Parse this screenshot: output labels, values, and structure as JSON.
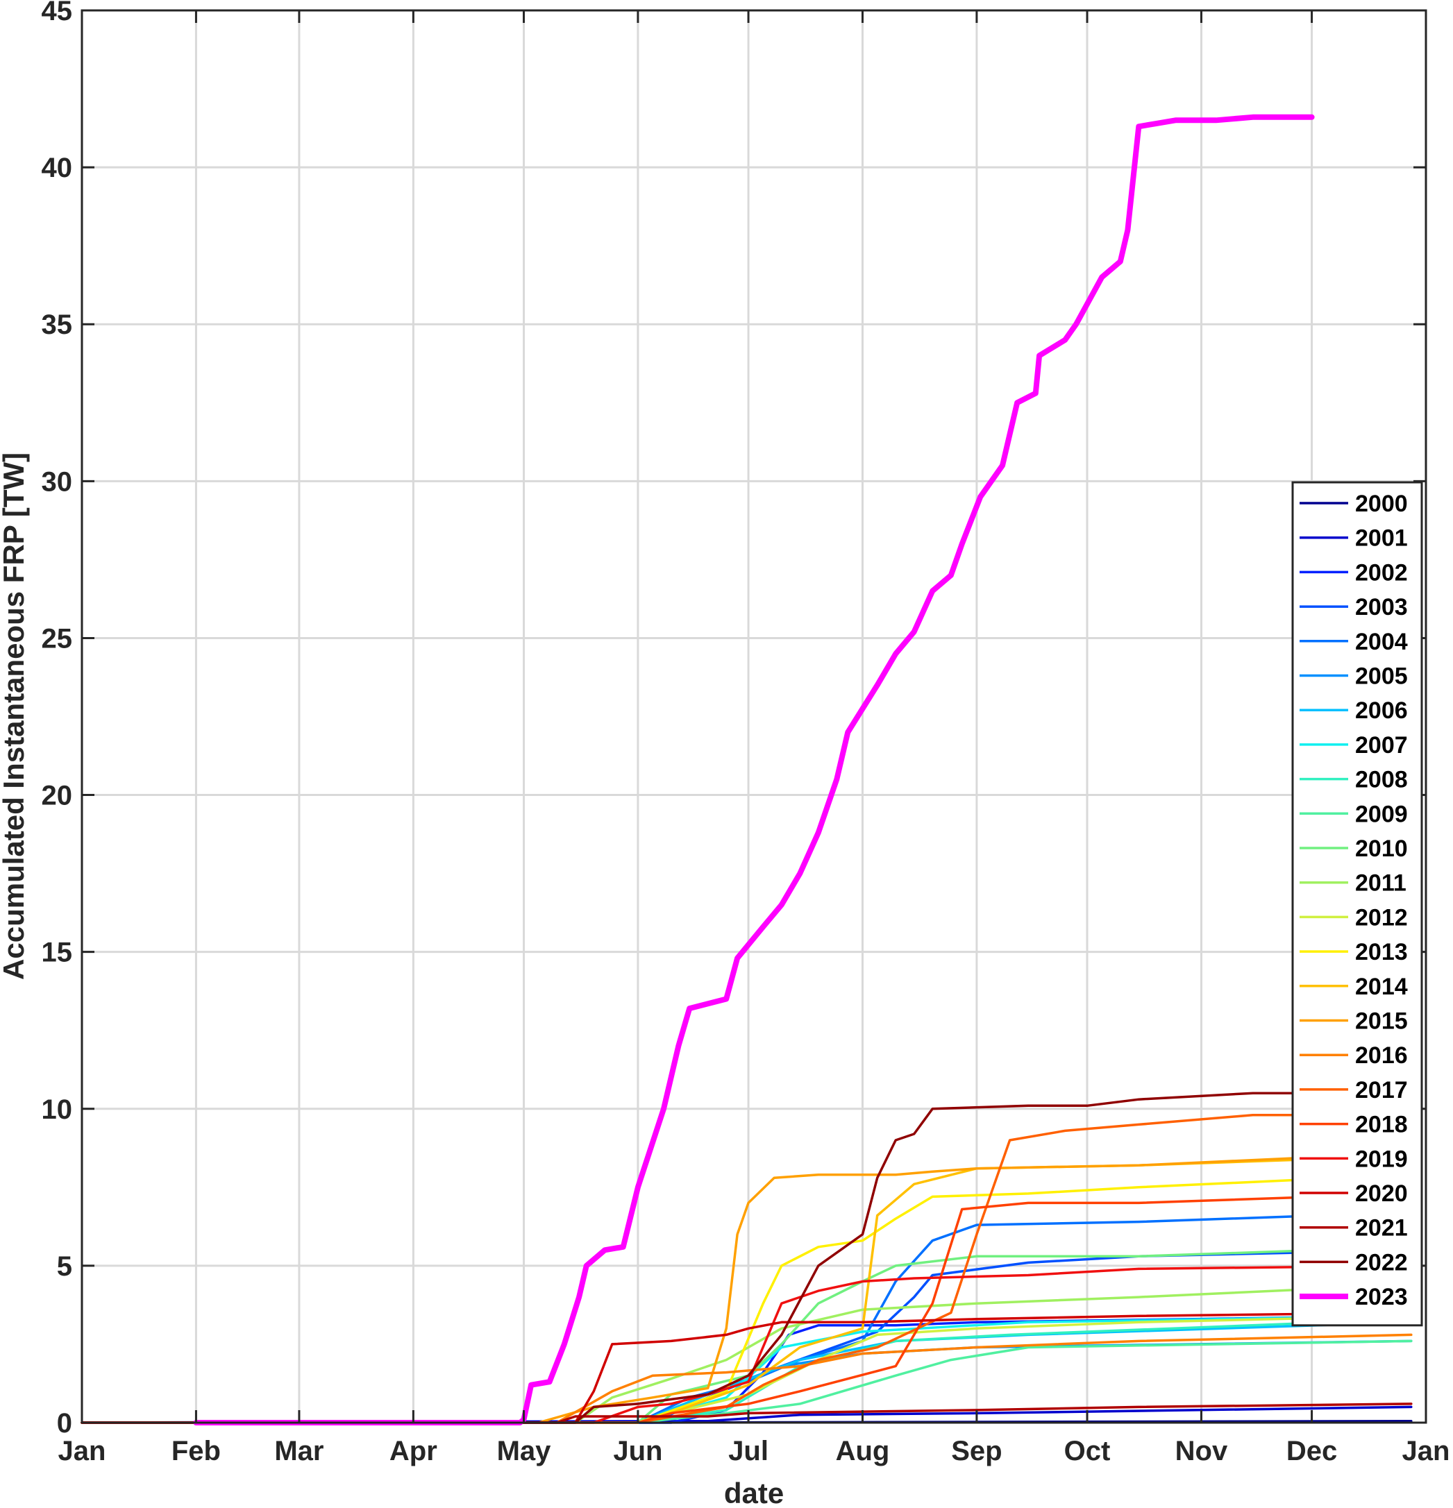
{
  "chart_data": {
    "type": "line",
    "title": "",
    "xlabel": "date",
    "ylabel": "Accumulated Instantaneous FRP [TW]",
    "ylim": [
      0,
      45
    ],
    "xlim": [
      "Jan 1",
      "Jan 1 (next year)"
    ],
    "yticks": [
      "0",
      "5",
      "10",
      "15",
      "20",
      "25",
      "30",
      "35",
      "40",
      "45"
    ],
    "xticks": [
      "Jan",
      "Feb",
      "Mar",
      "Apr",
      "May",
      "Jun",
      "Jul",
      "Aug",
      "Sep",
      "Oct",
      "Nov",
      "Dec",
      "Jan"
    ],
    "grid": true,
    "legend_position": "right, inside",
    "series": [
      {
        "name": "2000",
        "color": "#00008F",
        "points": [
          [
            "Jan 1",
            0
          ],
          [
            "Jun 1",
            0
          ],
          [
            "Dec 28",
            0.05
          ]
        ]
      },
      {
        "name": "2001",
        "color": "#0000CC",
        "points": [
          [
            "Jan 1",
            0
          ],
          [
            "Jun 20",
            0.05
          ],
          [
            "Jul 15",
            0.25
          ],
          [
            "Sep 1",
            0.3
          ],
          [
            "Dec 28",
            0.5
          ]
        ]
      },
      {
        "name": "2002",
        "color": "#0020FF",
        "points": [
          [
            "Jan 1",
            0
          ],
          [
            "Jun 10",
            0
          ],
          [
            "Jun 25",
            0.4
          ],
          [
            "Jul 5",
            1.6
          ],
          [
            "Jul 12",
            2.8
          ],
          [
            "Jul 20",
            3.1
          ],
          [
            "Aug 10",
            3.1
          ],
          [
            "Sep 1",
            3.2
          ],
          [
            "Dec 28",
            3.4
          ]
        ]
      },
      {
        "name": "2003",
        "color": "#0050FF",
        "points": [
          [
            "Jan 1",
            0
          ],
          [
            "Jun 5",
            0
          ],
          [
            "Jun 20",
            0.8
          ],
          [
            "Jul 10",
            1.8
          ],
          [
            "Aug 5",
            2.9
          ],
          [
            "Aug 15",
            4.0
          ],
          [
            "Aug 20",
            4.7
          ],
          [
            "Sep 15",
            5.1
          ],
          [
            "Oct 15",
            5.3
          ],
          [
            "Dec 28",
            5.5
          ]
        ]
      },
      {
        "name": "2004",
        "color": "#0070FF",
        "points": [
          [
            "Jan 1",
            0
          ],
          [
            "Jun 1",
            0
          ],
          [
            "Jun 15",
            0.8
          ],
          [
            "Jul 1",
            1.3
          ],
          [
            "Jul 15",
            2.0
          ],
          [
            "Aug 1",
            2.6
          ],
          [
            "Aug 10",
            4.5
          ],
          [
            "Aug 20",
            5.8
          ],
          [
            "Sep 1",
            6.3
          ],
          [
            "Oct 15",
            6.4
          ],
          [
            "Dec 28",
            6.7
          ]
        ]
      },
      {
        "name": "2005",
        "color": "#0090FF",
        "points": [
          [
            "Jan 1",
            0
          ],
          [
            "Jun 1",
            0
          ],
          [
            "Jun 20",
            0.9
          ],
          [
            "Jul 10",
            1.8
          ],
          [
            "Aug 1",
            2.2
          ],
          [
            "Sep 1",
            2.4
          ],
          [
            "Dec 28",
            2.6
          ]
        ]
      },
      {
        "name": "2006",
        "color": "#00C0FF",
        "points": [
          [
            "Jan 1",
            0
          ],
          [
            "Jun 1",
            0
          ],
          [
            "Jun 20",
            0.9
          ],
          [
            "Jul 15",
            2.0
          ],
          [
            "Aug 10",
            2.6
          ],
          [
            "Sep 15",
            2.8
          ],
          [
            "Dec 28",
            3.2
          ]
        ]
      },
      {
        "name": "2007",
        "color": "#10F0F0",
        "points": [
          [
            "Jan 1",
            0
          ],
          [
            "Jun 1",
            0
          ],
          [
            "Jun 25",
            0.8
          ],
          [
            "Jul 10",
            2.4
          ],
          [
            "Aug 1",
            2.9
          ],
          [
            "Sep 15",
            3.2
          ],
          [
            "Dec 28",
            3.4
          ]
        ]
      },
      {
        "name": "2008",
        "color": "#30F0C0",
        "points": [
          [
            "Jan 1",
            0
          ],
          [
            "Jun 1",
            0
          ],
          [
            "Jun 25",
            0.4
          ],
          [
            "Jul 15",
            1.8
          ],
          [
            "Aug 10",
            2.6
          ],
          [
            "Sep 10",
            2.8
          ],
          [
            "Dec 28",
            3.3
          ]
        ]
      },
      {
        "name": "2009",
        "color": "#50F0A0",
        "points": [
          [
            "Jan 1",
            0
          ],
          [
            "Jun 1",
            0
          ],
          [
            "Jun 25",
            0.3
          ],
          [
            "Jul 15",
            0.6
          ],
          [
            "Aug 10",
            1.5
          ],
          [
            "Aug 25",
            2.0
          ],
          [
            "Sep 15",
            2.4
          ],
          [
            "Dec 28",
            2.6
          ]
        ]
      },
      {
        "name": "2010",
        "color": "#70F080",
        "points": [
          [
            "Jan 1",
            0
          ],
          [
            "Jun 1",
            0
          ],
          [
            "Jun 10",
            0.9
          ],
          [
            "Jul 1",
            1.5
          ],
          [
            "Jul 10",
            2.5
          ],
          [
            "Jul 20",
            3.8
          ],
          [
            "Aug 1",
            4.5
          ],
          [
            "Aug 10",
            5.0
          ],
          [
            "Sep 1",
            5.3
          ],
          [
            "Oct 15",
            5.3
          ],
          [
            "Dec 28",
            5.6
          ]
        ]
      },
      {
        "name": "2011",
        "color": "#A0F060",
        "points": [
          [
            "Jan 1",
            0
          ],
          [
            "May 15",
            0
          ],
          [
            "May 25",
            0.8
          ],
          [
            "Jun 10",
            1.4
          ],
          [
            "Jun 25",
            2.0
          ],
          [
            "Jul 10",
            3.0
          ],
          [
            "Aug 1",
            3.6
          ],
          [
            "Sep 1",
            3.8
          ],
          [
            "Oct 15",
            4.0
          ],
          [
            "Dec 28",
            4.4
          ]
        ]
      },
      {
        "name": "2012",
        "color": "#D0F040",
        "points": [
          [
            "Jan 1",
            0
          ],
          [
            "Jun 1",
            0
          ],
          [
            "Jun 10",
            0.3
          ],
          [
            "Jul 1",
            0.9
          ],
          [
            "Jul 20",
            2.0
          ],
          [
            "Aug 5",
            2.8
          ],
          [
            "Sep 1",
            3.0
          ],
          [
            "Oct 15",
            3.2
          ],
          [
            "Dec 28",
            3.4
          ]
        ]
      },
      {
        "name": "2013",
        "color": "#FFF000",
        "points": [
          [
            "Jan 1",
            0
          ],
          [
            "Jun 1",
            0
          ],
          [
            "Jun 25",
            1.0
          ],
          [
            "Jul 5",
            3.8
          ],
          [
            "Jul 10",
            5.0
          ],
          [
            "Jul 20",
            5.6
          ],
          [
            "Aug 1",
            5.8
          ],
          [
            "Aug 10",
            6.5
          ],
          [
            "Aug 20",
            7.2
          ],
          [
            "Sep 15",
            7.3
          ],
          [
            "Oct 15",
            7.5
          ],
          [
            "Dec 28",
            7.9
          ]
        ]
      },
      {
        "name": "2014",
        "color": "#FFC000",
        "points": [
          [
            "Jan 1",
            0
          ],
          [
            "Jun 1",
            0
          ],
          [
            "Jun 10",
            0.3
          ],
          [
            "Jul 1",
            1.2
          ],
          [
            "Jul 15",
            2.4
          ],
          [
            "Aug 1",
            3.0
          ],
          [
            "Aug 5",
            6.6
          ],
          [
            "Aug 15",
            7.6
          ],
          [
            "Sep 1",
            8.1
          ],
          [
            "Oct 15",
            8.2
          ],
          [
            "Dec 28",
            8.5
          ]
        ]
      },
      {
        "name": "2015",
        "color": "#FFA000",
        "points": [
          [
            "Jan 1",
            0
          ],
          [
            "May 5",
            0
          ],
          [
            "May 20",
            0.5
          ],
          [
            "Jun 5",
            0.8
          ],
          [
            "Jun 20",
            1.1
          ],
          [
            "Jun 25",
            3.0
          ],
          [
            "Jun 28",
            6.0
          ],
          [
            "Jul 1",
            7.0
          ],
          [
            "Jul 8",
            7.8
          ],
          [
            "Jul 20",
            7.9
          ],
          [
            "Aug 10",
            7.9
          ],
          [
            "Aug 20",
            8.0
          ],
          [
            "Sep 1",
            8.1
          ],
          [
            "Oct 15",
            8.2
          ],
          [
            "Dec 28",
            8.6
          ]
        ]
      },
      {
        "name": "2016",
        "color": "#FF8000",
        "points": [
          [
            "Jan 1",
            0
          ],
          [
            "May 10",
            0
          ],
          [
            "May 25",
            1.0
          ],
          [
            "Jun 5",
            1.5
          ],
          [
            "Jun 25",
            1.6
          ],
          [
            "Jul 15",
            1.8
          ],
          [
            "Aug 1",
            2.2
          ],
          [
            "Sep 1",
            2.4
          ],
          [
            "Oct 15",
            2.6
          ],
          [
            "Dec 28",
            2.8
          ]
        ]
      },
      {
        "name": "2017",
        "color": "#FF6000",
        "points": [
          [
            "Jan 1",
            0
          ],
          [
            "Jun 1",
            0
          ],
          [
            "Jun 25",
            0.5
          ],
          [
            "Jul 5",
            1.2
          ],
          [
            "Jul 20",
            2.0
          ],
          [
            "Aug 5",
            2.4
          ],
          [
            "Aug 25",
            3.5
          ],
          [
            "Sep 1",
            6.0
          ],
          [
            "Sep 10",
            9.0
          ],
          [
            "Sep 25",
            9.3
          ],
          [
            "Oct 15",
            9.5
          ],
          [
            "Nov 15",
            9.8
          ],
          [
            "Dec 28",
            9.8
          ]
        ]
      },
      {
        "name": "2018",
        "color": "#FF4000",
        "points": [
          [
            "Jan 1",
            0
          ],
          [
            "Jun 1",
            0
          ],
          [
            "Jun 10",
            0.3
          ],
          [
            "Jul 1",
            0.6
          ],
          [
            "Jul 15",
            1.0
          ],
          [
            "Aug 10",
            1.8
          ],
          [
            "Aug 20",
            3.8
          ],
          [
            "Aug 28",
            6.8
          ],
          [
            "Sep 15",
            7.0
          ],
          [
            "Oct 15",
            7.0
          ],
          [
            "Dec 28",
            7.3
          ]
        ]
      },
      {
        "name": "2019",
        "color": "#F01010",
        "points": [
          [
            "Jan 1",
            0
          ],
          [
            "May 20",
            0
          ],
          [
            "Jun 1",
            0.5
          ],
          [
            "Jun 10",
            0.6
          ],
          [
            "Jun 20",
            0.9
          ],
          [
            "Jul 1",
            1.3
          ],
          [
            "Jul 10",
            3.8
          ],
          [
            "Jul 20",
            4.2
          ],
          [
            "Aug 1",
            4.5
          ],
          [
            "Aug 15",
            4.6
          ],
          [
            "Sep 15",
            4.7
          ],
          [
            "Oct 15",
            4.9
          ],
          [
            "Dec 28",
            5.0
          ]
        ]
      },
      {
        "name": "2020",
        "color": "#D00000",
        "points": [
          [
            "Jan 1",
            0
          ],
          [
            "May 15",
            0
          ],
          [
            "May 20",
            1.0
          ],
          [
            "May 25",
            2.5
          ],
          [
            "Jun 10",
            2.6
          ],
          [
            "Jun 25",
            2.8
          ],
          [
            "Jul 1",
            3.0
          ],
          [
            "Jul 10",
            3.2
          ],
          [
            "Aug 1",
            3.2
          ],
          [
            "Sep 1",
            3.3
          ],
          [
            "Oct 15",
            3.4
          ],
          [
            "Dec 28",
            3.5
          ]
        ]
      },
      {
        "name": "2021",
        "color": "#B00000",
        "points": [
          [
            "Jan 1",
            0
          ],
          [
            "May 10",
            0
          ],
          [
            "May 15",
            0.2
          ],
          [
            "Jun 20",
            0.2
          ],
          [
            "Jul 1",
            0.3
          ],
          [
            "Sep 1",
            0.4
          ],
          [
            "Oct 15",
            0.5
          ],
          [
            "Dec 28",
            0.6
          ]
        ]
      },
      {
        "name": "2022",
        "color": "#900000",
        "points": [
          [
            "Jan 1",
            0
          ],
          [
            "May 15",
            0
          ],
          [
            "May 20",
            0.5
          ],
          [
            "Jun 1",
            0.6
          ],
          [
            "Jun 20",
            0.9
          ],
          [
            "Jul 1",
            1.5
          ],
          [
            "Jul 10",
            2.8
          ],
          [
            "Jul 20",
            5.0
          ],
          [
            "Aug 1",
            6.0
          ],
          [
            "Aug 5",
            7.8
          ],
          [
            "Aug 10",
            9.0
          ],
          [
            "Aug 15",
            9.2
          ],
          [
            "Aug 20",
            10.0
          ],
          [
            "Sep 15",
            10.1
          ],
          [
            "Oct 1",
            10.1
          ],
          [
            "Oct 15",
            10.3
          ],
          [
            "Nov 15",
            10.5
          ],
          [
            "Dec 28",
            10.5
          ]
        ]
      },
      {
        "name": "2023",
        "color": "#FF00FF",
        "thick": true,
        "points": [
          [
            "Feb 1",
            0
          ],
          [
            "Apr 30",
            0
          ],
          [
            "May 1",
            0.1
          ],
          [
            "May 3",
            1.2
          ],
          [
            "May 8",
            1.3
          ],
          [
            "May 12",
            2.5
          ],
          [
            "May 16",
            4.0
          ],
          [
            "May 18",
            5.0
          ],
          [
            "May 23",
            5.5
          ],
          [
            "May 28",
            5.6
          ],
          [
            "Jun 1",
            7.5
          ],
          [
            "Jun 8",
            10.0
          ],
          [
            "Jun 12",
            12.0
          ],
          [
            "Jun 15",
            13.2
          ],
          [
            "Jun 25",
            13.5
          ],
          [
            "Jun 28",
            14.8
          ],
          [
            "Jul 5",
            15.8
          ],
          [
            "Jul 10",
            16.5
          ],
          [
            "Jul 15",
            17.5
          ],
          [
            "Jul 20",
            18.8
          ],
          [
            "Jul 25",
            20.5
          ],
          [
            "Jul 28",
            22.0
          ],
          [
            "Aug 5",
            23.5
          ],
          [
            "Aug 10",
            24.5
          ],
          [
            "Aug 15",
            25.2
          ],
          [
            "Aug 20",
            26.5
          ],
          [
            "Aug 25",
            27.0
          ],
          [
            "Aug 28",
            28.0
          ],
          [
            "Sep 2",
            29.5
          ],
          [
            "Sep 8",
            30.5
          ],
          [
            "Sep 12",
            32.5
          ],
          [
            "Sep 17",
            32.8
          ],
          [
            "Sep 18",
            34.0
          ],
          [
            "Sep 25",
            34.5
          ],
          [
            "Sep 28",
            35.0
          ],
          [
            "Oct 5",
            36.5
          ],
          [
            "Oct 10",
            37.0
          ],
          [
            "Oct 12",
            38.0
          ],
          [
            "Oct 15",
            41.3
          ],
          [
            "Oct 20",
            41.4
          ],
          [
            "Oct 25",
            41.5
          ],
          [
            "Nov 5",
            41.5
          ],
          [
            "Nov 15",
            41.6
          ],
          [
            "Dec 1",
            41.6
          ]
        ]
      }
    ]
  }
}
